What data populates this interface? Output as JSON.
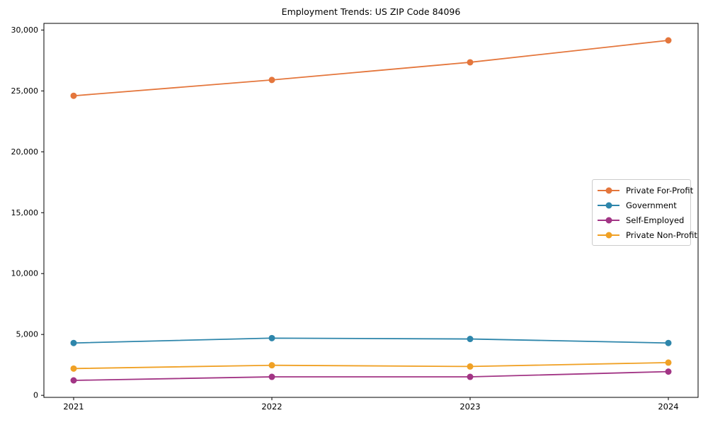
{
  "chart_data": {
    "type": "line",
    "title": "Employment Trends: US ZIP Code 84096",
    "xlabel": "",
    "ylabel": "",
    "categories": [
      "2021",
      "2022",
      "2023",
      "2024"
    ],
    "series": [
      {
        "name": "Private For-Profit",
        "color": "#E4763C",
        "values": [
          24600,
          25900,
          27350,
          29150
        ]
      },
      {
        "name": "Government",
        "color": "#2E86AB",
        "values": [
          4300,
          4700,
          4630,
          4300
        ]
      },
      {
        "name": "Self-Employed",
        "color": "#A23585",
        "values": [
          1230,
          1520,
          1520,
          1950
        ]
      },
      {
        "name": "Private Non-Profit",
        "color": "#F0A125",
        "values": [
          2200,
          2470,
          2370,
          2690
        ]
      }
    ],
    "y_ticks": [
      {
        "value": 0,
        "label": "0"
      },
      {
        "value": 5000,
        "label": "5,000"
      },
      {
        "value": 10000,
        "label": "10,000"
      },
      {
        "value": 15000,
        "label": "15,000"
      },
      {
        "value": 20000,
        "label": "20,000"
      },
      {
        "value": 25000,
        "label": "25,000"
      },
      {
        "value": 30000,
        "label": "30,000"
      }
    ],
    "ylim": [
      -166,
      30546
    ],
    "grid": false,
    "legend_position": "center-right",
    "frame_color": "#000000",
    "background": "#ffffff"
  }
}
